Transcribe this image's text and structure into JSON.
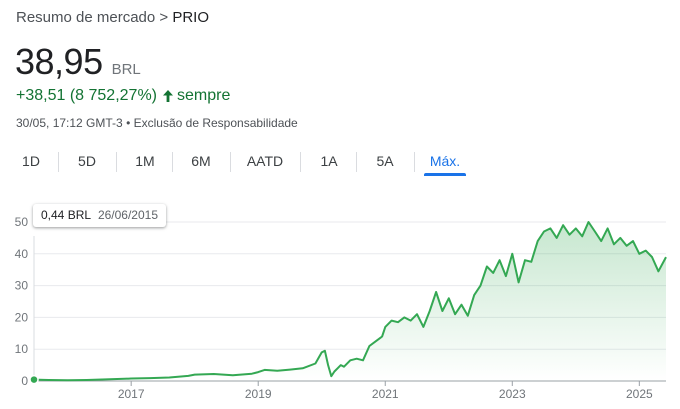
{
  "breadcrumb": {
    "prefix": "Resumo de mercado",
    "separator": ">",
    "current": "PRIO"
  },
  "price": {
    "value": "38,95",
    "currency": "BRL"
  },
  "change": {
    "text": "+38,51 (8 752,27%)",
    "period": "sempre",
    "color": "#137333"
  },
  "meta": {
    "timestamp": "30/05, 17:12 GMT-3",
    "separator": "•",
    "disclaimer": "Exclusão de Responsabilidade"
  },
  "tabs": [
    {
      "label": "1D",
      "active": false
    },
    {
      "label": "5D",
      "active": false
    },
    {
      "label": "1M",
      "active": false
    },
    {
      "label": "6M",
      "active": false
    },
    {
      "label": "AATD",
      "active": false
    },
    {
      "label": "1A",
      "active": false
    },
    {
      "label": "5A",
      "active": false
    },
    {
      "label": "Máx.",
      "active": true
    }
  ],
  "tooltip": {
    "value": "0,44 BRL",
    "date": "26/06/2015"
  },
  "chart_data": {
    "type": "area",
    "title": "",
    "xlabel": "",
    "ylabel": "",
    "ylim": [
      0,
      50
    ],
    "xlim": [
      2015.47,
      2025.42
    ],
    "y_ticks": [
      "0",
      "10",
      "20",
      "30",
      "40",
      "50"
    ],
    "x_ticks": [
      "2017",
      "2019",
      "2021",
      "2023",
      "2025"
    ],
    "grid": true,
    "line_color": "#34a853",
    "series": [
      {
        "x": [
          2015.47,
          2015.7,
          2016.0,
          2016.3,
          2016.6,
          2016.9,
          2017.0,
          2017.3,
          2017.6,
          2017.9,
          2018.0,
          2018.3,
          2018.6,
          2018.9,
          2019.0,
          2019.1,
          2019.3,
          2019.5,
          2019.7,
          2019.9,
          2020.0,
          2020.05,
          2020.1,
          2020.15,
          2020.2,
          2020.25,
          2020.3,
          2020.35,
          2020.45,
          2020.55,
          2020.65,
          2020.75,
          2020.85,
          2020.95,
          2021.0,
          2021.1,
          2021.2,
          2021.3,
          2021.4,
          2021.5,
          2021.6,
          2021.7,
          2021.8,
          2021.9,
          2022.0,
          2022.1,
          2022.2,
          2022.3,
          2022.4,
          2022.5,
          2022.6,
          2022.7,
          2022.8,
          2022.9,
          2023.0,
          2023.1,
          2023.2,
          2023.3,
          2023.4,
          2023.5,
          2023.6,
          2023.7,
          2023.8,
          2023.9,
          2024.0,
          2024.1,
          2024.2,
          2024.3,
          2024.4,
          2024.5,
          2024.6,
          2024.7,
          2024.8,
          2024.9,
          2025.0,
          2025.1,
          2025.2,
          2025.3,
          2025.42
        ],
        "y": [
          0.44,
          0.3,
          0.25,
          0.3,
          0.5,
          0.7,
          0.8,
          0.9,
          1.1,
          1.6,
          2.0,
          2.2,
          1.8,
          2.3,
          2.8,
          3.5,
          3.2,
          3.6,
          4.0,
          5.5,
          9.0,
          9.5,
          5.0,
          1.5,
          3.0,
          4.0,
          5.0,
          4.5,
          6.5,
          7.0,
          6.5,
          11.0,
          12.5,
          14.0,
          17.0,
          19.0,
          18.5,
          20.0,
          19.0,
          21.0,
          17.0,
          22.0,
          28.0,
          22.0,
          26.0,
          21.0,
          24.0,
          20.5,
          27.0,
          30.0,
          36.0,
          34.0,
          38.0,
          33.0,
          40.0,
          31.0,
          38.0,
          37.5,
          44.0,
          47.0,
          48.0,
          45.0,
          49.0,
          46.0,
          48.0,
          45.5,
          50.0,
          47.0,
          44.0,
          48.0,
          43.0,
          45.0,
          42.5,
          44.0,
          40.0,
          41.0,
          39.0,
          34.5,
          38.95
        ]
      }
    ]
  }
}
